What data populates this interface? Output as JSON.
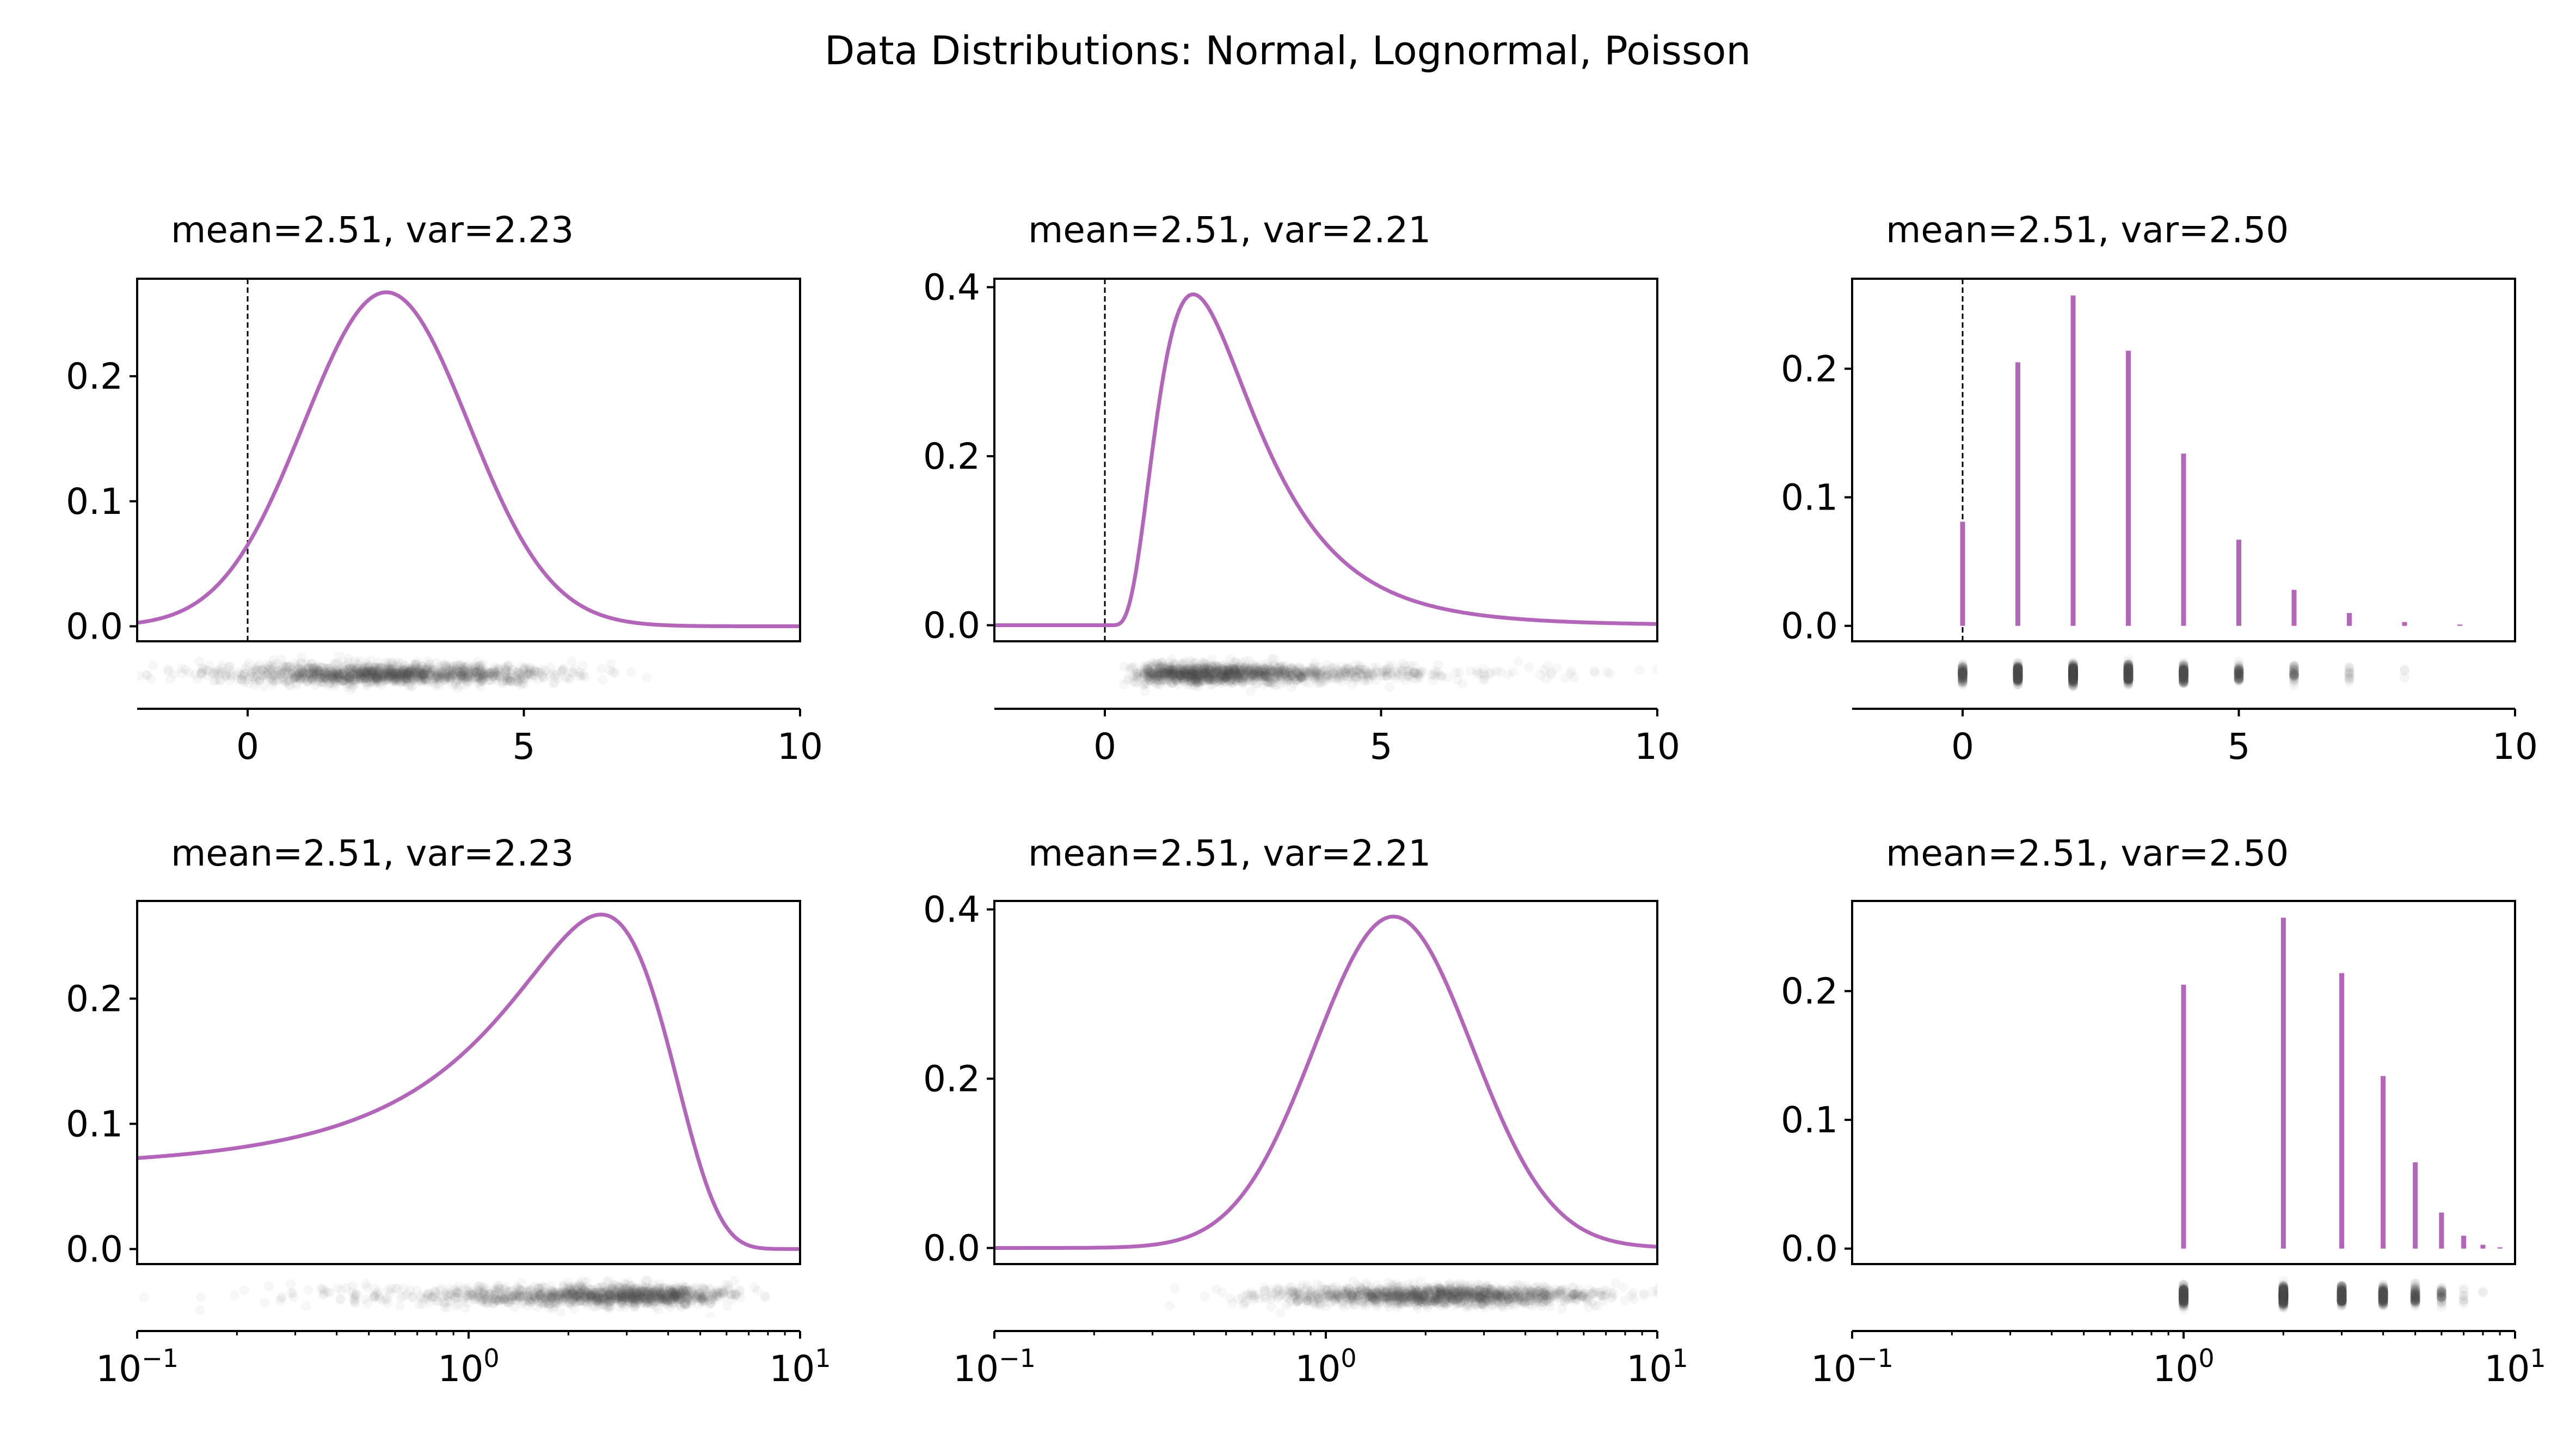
{
  "figure": {
    "title": "Data Distributions: Normal, Lognormal, Poisson",
    "curve_color": "#b265b9",
    "rug_color": "#4d4d4d",
    "zero_line_color": "#000000"
  },
  "chart_data": [
    {
      "type": "line",
      "row": 0,
      "col": 0,
      "title": "mean=2.51, var=2.23",
      "distribution": "normal",
      "mean": 2.51,
      "var": 2.23,
      "xscale": "linear",
      "xlim": [
        -2,
        10
      ],
      "ylim": [
        -0.012,
        0.278
      ],
      "xticks": [
        0,
        5,
        10
      ],
      "xtick_labels": [
        "0",
        "5",
        "10"
      ],
      "yticks": [
        0.0,
        0.1,
        0.2
      ],
      "ytick_labels": [
        "0.0",
        "0.1",
        "0.2"
      ],
      "zero_line": true
    },
    {
      "type": "line",
      "row": 0,
      "col": 1,
      "title": "mean=2.51, var=2.21",
      "distribution": "lognormal",
      "mean": 2.51,
      "var": 2.21,
      "xscale": "linear",
      "xlim": [
        -2,
        10
      ],
      "ylim": [
        -0.019,
        0.41
      ],
      "xticks": [
        0,
        5,
        10
      ],
      "xtick_labels": [
        "0",
        "5",
        "10"
      ],
      "yticks": [
        0.0,
        0.2,
        0.4
      ],
      "ytick_labels": [
        "0.0",
        "0.2",
        "0.4"
      ],
      "zero_line": true
    },
    {
      "type": "bar",
      "row": 0,
      "col": 2,
      "title": "mean=2.51, var=2.50",
      "distribution": "poisson",
      "mean": 2.51,
      "var": 2.5,
      "xscale": "linear",
      "xlim": [
        -2,
        10
      ],
      "ylim": [
        -0.012,
        0.27
      ],
      "xticks": [
        0,
        5,
        10
      ],
      "xtick_labels": [
        "0",
        "5",
        "10"
      ],
      "yticks": [
        0.0,
        0.1,
        0.2
      ],
      "ytick_labels": [
        "0.0",
        "0.1",
        "0.2"
      ],
      "zero_line": true,
      "x": [
        0,
        1,
        2,
        3,
        4,
        5,
        6,
        7,
        8,
        9
      ],
      "values": [
        0.081,
        0.205,
        0.257,
        0.214,
        0.134,
        0.067,
        0.028,
        0.01,
        0.003,
        0.001
      ]
    },
    {
      "type": "line",
      "row": 1,
      "col": 0,
      "title": "mean=2.51, var=2.23",
      "distribution": "normal",
      "mean": 2.51,
      "var": 2.23,
      "xscale": "log",
      "xlim": [
        0.1,
        10
      ],
      "ylim": [
        -0.012,
        0.278
      ],
      "xticks": [
        0.1,
        1,
        10
      ],
      "xtick_labels": [
        [
          "10",
          "−1"
        ],
        [
          "10",
          "0"
        ],
        [
          "10",
          "1"
        ]
      ],
      "yticks": [
        0.0,
        0.1,
        0.2
      ],
      "ytick_labels": [
        "0.0",
        "0.1",
        "0.2"
      ],
      "zero_line": false
    },
    {
      "type": "line",
      "row": 1,
      "col": 1,
      "title": "mean=2.51, var=2.21",
      "distribution": "lognormal",
      "mean": 2.51,
      "var": 2.21,
      "xscale": "log",
      "xlim": [
        0.1,
        10
      ],
      "ylim": [
        -0.019,
        0.41
      ],
      "xticks": [
        0.1,
        1,
        10
      ],
      "xtick_labels": [
        [
          "10",
          "−1"
        ],
        [
          "10",
          "0"
        ],
        [
          "10",
          "1"
        ]
      ],
      "yticks": [
        0.0,
        0.2,
        0.4
      ],
      "ytick_labels": [
        "0.0",
        "0.2",
        "0.4"
      ],
      "zero_line": false
    },
    {
      "type": "bar",
      "row": 1,
      "col": 2,
      "title": "mean=2.51, var=2.50",
      "distribution": "poisson",
      "mean": 2.51,
      "var": 2.5,
      "xscale": "log",
      "xlim": [
        0.1,
        10
      ],
      "ylim": [
        -0.012,
        0.27
      ],
      "xticks": [
        0.1,
        1,
        10
      ],
      "xtick_labels": [
        [
          "10",
          "−1"
        ],
        [
          "10",
          "0"
        ],
        [
          "10",
          "1"
        ]
      ],
      "yticks": [
        0.0,
        0.1,
        0.2
      ],
      "ytick_labels": [
        "0.0",
        "0.1",
        "0.2"
      ],
      "zero_line": false,
      "x": [
        1,
        2,
        3,
        4,
        5,
        6,
        7,
        8,
        9
      ],
      "values": [
        0.205,
        0.257,
        0.214,
        0.134,
        0.067,
        0.028,
        0.01,
        0.003,
        0.001
      ]
    }
  ]
}
